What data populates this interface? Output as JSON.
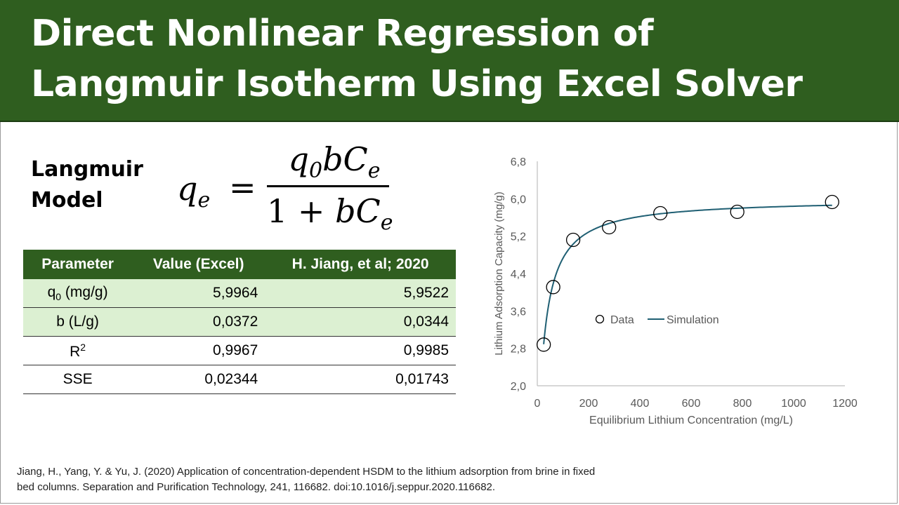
{
  "title": {
    "line1": "Direct Nonlinear Regression of",
    "line2": "Langmuir Isotherm Using Excel Solver"
  },
  "model_label": {
    "line1": "Langmuir",
    "line2": "Model"
  },
  "formula": {
    "lhs": "q",
    "lhs_sub": "e",
    "eq": "=",
    "num_q": "q",
    "num_q_sub": "0",
    "num_rest": "bC",
    "num_rest_sub": "e",
    "den_one": "1 + ",
    "den_rest": "bC",
    "den_rest_sub": "e"
  },
  "table": {
    "headers": [
      "Parameter",
      "Value (Excel)",
      "H. Jiang, et al; 2020"
    ],
    "rows": [
      {
        "param": "q",
        "param_sub": "0",
        "param_unit": " (mg/g)",
        "excel": "5,9964",
        "jiang": "5,9522",
        "highlight": true
      },
      {
        "param": "b (L/g)",
        "excel": "0,0372",
        "jiang": "0,0344",
        "highlight": true
      },
      {
        "param": "R",
        "param_sup": "2",
        "excel": "0,9967",
        "jiang": "0,9985",
        "highlight": false
      },
      {
        "param": "SSE",
        "excel": "0,02344",
        "jiang": "0,01743",
        "highlight": false
      }
    ]
  },
  "chart_data": {
    "type": "scatter",
    "xlabel": "Equilibrium Lithium Concentration (mg/L)",
    "ylabel": "Lithium Adsorption Capacity (mg/g)",
    "xlim": [
      0,
      1200
    ],
    "ylim": [
      2.0,
      6.8
    ],
    "xticks": [
      0,
      200,
      400,
      600,
      800,
      1000,
      1200
    ],
    "yticks": [
      2.0,
      2.8,
      3.6,
      4.4,
      5.2,
      6.0,
      6.8
    ],
    "ytick_labels": [
      "2,0",
      "2,8",
      "3,6",
      "4,4",
      "5,2",
      "6,0",
      "6,8"
    ],
    "grid": false,
    "legend_placement": "center",
    "colors": {
      "data": "#000000",
      "simulation": "#1f5f73"
    },
    "series": [
      {
        "name": "Data",
        "kind": "markers",
        "x": [
          25,
          62,
          140,
          280,
          480,
          780,
          1150
        ],
        "y": [
          2.88,
          4.11,
          5.12,
          5.39,
          5.69,
          5.72,
          5.93
        ]
      },
      {
        "name": "Simulation",
        "kind": "line",
        "model": {
          "q0": 5.9964,
          "b": 0.0372
        },
        "x_range": [
          25,
          1150
        ]
      }
    ]
  },
  "citation": {
    "line1": "Jiang, H., Yang, Y. & Yu, J. (2020) Application of concentration-dependent HSDM to the lithium adsorption from brine in fixed",
    "line2": "bed columns. Separation and Purification Technology, 241, 116682. doi:10.1016/j.seppur.2020.116682."
  }
}
